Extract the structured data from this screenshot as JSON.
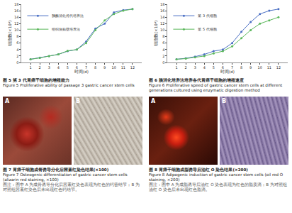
{
  "chart_data": [
    {
      "type": "line",
      "x_label": "时间(d)",
      "y_label": "细胞数(×10⁴)",
      "x": [
        1,
        2,
        3,
        4,
        5,
        6,
        7,
        8,
        9,
        10,
        11,
        12
      ],
      "series": [
        {
          "name": "胰酶消化传代培养法",
          "color": "#4a6fc4",
          "marker": "circle",
          "line_style": "solid",
          "values": [
            1,
            1.5,
            2,
            2.5,
            3.5,
            4,
            6.5,
            10.5,
            12,
            15.5,
            16.2,
            16.5
          ]
        },
        {
          "name": "组织块贴壁培养法",
          "color": "#5cb85c",
          "marker": "circle",
          "line_style": "solid",
          "values": [
            1,
            1.4,
            2,
            2.5,
            3.6,
            4,
            6,
            10,
            13,
            15,
            16,
            16.5
          ]
        }
      ],
      "xlim": [
        0,
        13
      ],
      "xticks": [
        1,
        2,
        3,
        4,
        5,
        6,
        7,
        8,
        9,
        10,
        11,
        12
      ],
      "ylim": [
        0,
        18
      ],
      "yticks": [
        0,
        2,
        4,
        6,
        8,
        10,
        12,
        14,
        16,
        18
      ],
      "grid": false,
      "legend": "upper left"
    },
    {
      "type": "line",
      "x_label": "时间(d)",
      "y_label": "细胞数(×10⁴)",
      "x": [
        1,
        2,
        3,
        4,
        5,
        6,
        7,
        8,
        9,
        10,
        11,
        12
      ],
      "series": [
        {
          "name": "第 3 代细胞",
          "color": "#4a6fc4",
          "marker": "circle",
          "line_style": "solid",
          "values": [
            1,
            1.3,
            1.8,
            2.5,
            3.5,
            4,
            6,
            9.5,
            12.5,
            15,
            16,
            16.5
          ]
        },
        {
          "name": "第 5 代细胞",
          "color": "#5cb85c",
          "marker": "circle",
          "line_style": "solid",
          "values": [
            1,
            1.2,
            1.6,
            2,
            2.8,
            3.5,
            5,
            7.5,
            10,
            12,
            13,
            14
          ]
        }
      ],
      "xlim": [
        0,
        13
      ],
      "xticks": [
        1,
        2,
        3,
        4,
        5,
        6,
        7,
        8,
        9,
        10,
        11,
        12
      ],
      "ylim": [
        0,
        18
      ],
      "yticks": [
        0,
        2,
        4,
        6,
        8,
        10,
        12,
        14,
        16,
        18
      ],
      "grid": false,
      "legend": "upper left"
    }
  ],
  "figures": [
    {
      "caption": "图 5  第 3 代胃癌干细胞的增殖能力",
      "caption_en": "Figure 5  Proliferative ability of passage 3 gastric cancer stem cells"
    },
    {
      "caption": "图 6  胰消化培养法培养各代胃癌干细胞的增殖速度",
      "caption_en": "Figure 6  Proliferative speed of gastric cancer stem cells at different generations cultured using enzymatic digestion method"
    },
    {
      "caption": "图 7  胃癌干细胞成骨诱导分化后茜素红染色结果(×100)",
      "caption_en": "Figure 7  Osteogenic differentiation of gastric cancer stem cells (alizarin red staining, ×100)",
      "panels": [
        "A",
        "B"
      ],
      "note": "图注：图中 A 为成骨诱导分化后茜素红染色表现为红色的钙密结节；B 为对照组茜素红染色后未出现红色钙结节。"
    },
    {
      "caption": "图 8  胃癌干细胞成脂诱导后油红 O 染色结果(×200)",
      "caption_en": "Figure 8  Adipogenic induction of gastric cancer stem cells (oil red O staining, ×200)",
      "panels": [
        "A",
        "B"
      ],
      "note": "图注：图中 A 为成脂诱导后油红 O 染色表现为红色的脂质滴；B 为对照组油红 O 染色后未出现红色脂滴。"
    }
  ]
}
